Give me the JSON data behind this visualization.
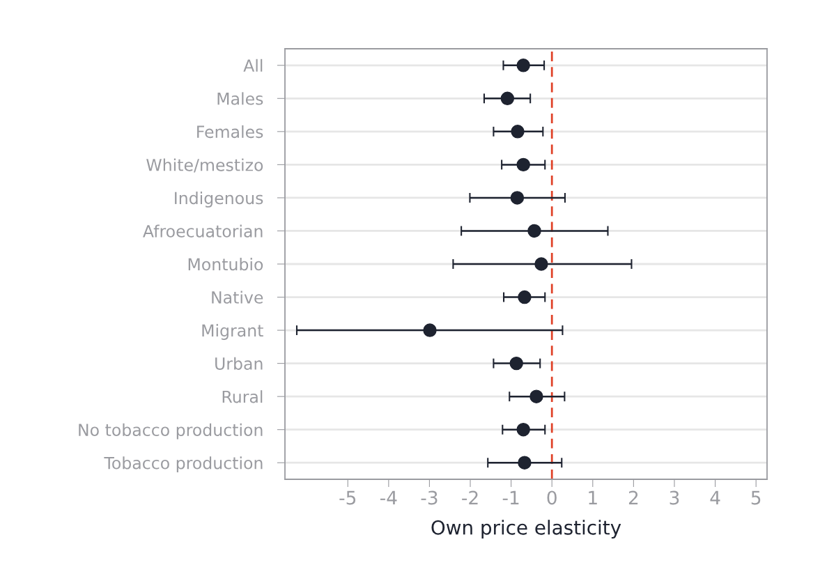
{
  "chart_data": {
    "type": "scatter",
    "orientation": "horizontal",
    "xlabel": "Own price elasticity",
    "categories": [
      "All",
      "Males",
      "Females",
      "White/mestizo",
      "Indigenous",
      "Afroecuatorian",
      "Montubio",
      "Native",
      "Migrant",
      "Urban",
      "Rural",
      "No tobacco production",
      "Tobacco production"
    ],
    "values": [
      -0.7,
      -1.09,
      -0.84,
      -0.7,
      -0.85,
      -0.43,
      -0.26,
      -0.67,
      -2.99,
      -0.87,
      -0.38,
      -0.7,
      -0.67
    ],
    "errors": [
      [
        -1.19,
        -0.19
      ],
      [
        -1.66,
        -0.53
      ],
      [
        -1.43,
        -0.22
      ],
      [
        -1.23,
        -0.17
      ],
      [
        -2.01,
        0.32
      ],
      [
        -2.22,
        1.37
      ],
      [
        -2.42,
        1.95
      ],
      [
        -1.18,
        -0.17
      ],
      [
        -6.25,
        0.26
      ],
      [
        -1.43,
        -0.29
      ],
      [
        -1.04,
        0.31
      ],
      [
        -1.21,
        -0.17
      ],
      [
        -1.57,
        0.24
      ]
    ],
    "color": "#1e2330",
    "marker": "circle",
    "xlim": [
      -6.54,
      5.27
    ],
    "xticks": [
      -5,
      -4,
      -3,
      -2,
      -1,
      0,
      1,
      2,
      3,
      4,
      5
    ],
    "grid": "y",
    "ref_lines": [
      {
        "axis": "x",
        "value": 0,
        "color": "#e0442a",
        "line_style": "dashed"
      }
    ]
  }
}
